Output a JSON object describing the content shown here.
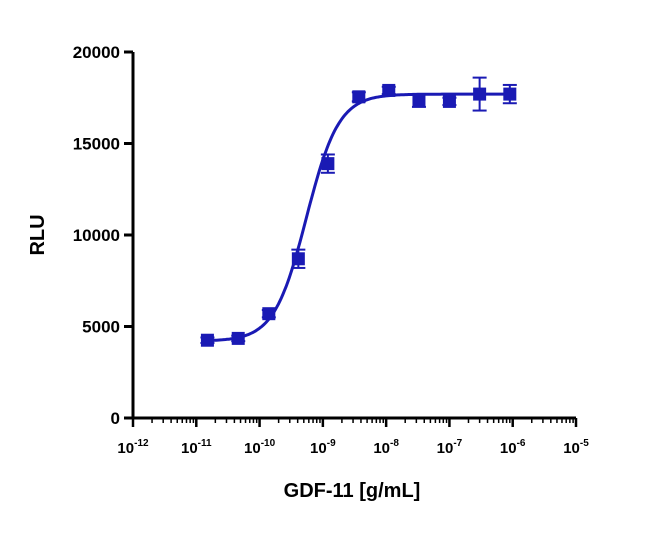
{
  "chart_data": {
    "type": "scatter",
    "title": "",
    "xlabel": "GDF-11 [g/mL]",
    "ylabel": "RLU",
    "xscale": "log",
    "xlim": [
      1e-12,
      1e-05
    ],
    "ylim": [
      0,
      20000
    ],
    "x_tick_labels": [
      {
        "base": "10",
        "exp": "-12"
      },
      {
        "base": "10",
        "exp": "-11"
      },
      {
        "base": "10",
        "exp": "-10"
      },
      {
        "base": "10",
        "exp": "-9"
      },
      {
        "base": "10",
        "exp": "-8"
      },
      {
        "base": "10",
        "exp": "-7"
      },
      {
        "base": "10",
        "exp": "-6"
      },
      {
        "base": "10",
        "exp": "-5"
      }
    ],
    "y_ticks": [
      0,
      5000,
      10000,
      15000,
      20000
    ],
    "y_tick_labels": [
      "0",
      "5000",
      "10000",
      "15000",
      "20000"
    ],
    "grid": false,
    "color": "#1a1ab4",
    "series": [
      {
        "name": "GDF-11",
        "marker": "square",
        "points": [
          {
            "x": 1.5e-11,
            "y": 4250,
            "err": 150
          },
          {
            "x": 4.6e-11,
            "y": 4350,
            "err": 150
          },
          {
            "x": 1.4e-10,
            "y": 5700,
            "err": 200
          },
          {
            "x": 4.1e-10,
            "y": 8700,
            "err": 500
          },
          {
            "x": 1.2e-09,
            "y": 13900,
            "err": 500
          },
          {
            "x": 3.7e-09,
            "y": 17550,
            "err": 250
          },
          {
            "x": 1.1e-08,
            "y": 17900,
            "err": 200
          },
          {
            "x": 3.3e-08,
            "y": 17350,
            "err": 350
          },
          {
            "x": 1e-07,
            "y": 17300,
            "err": 200
          },
          {
            "x": 3e-07,
            "y": 17700,
            "err": 900
          },
          {
            "x": 9e-07,
            "y": 17700,
            "err": 500
          }
        ],
        "fit": {
          "model": "4PL",
          "bottom": 4200,
          "top": 17700,
          "ec50": 5.5e-10,
          "hill": 1.7,
          "x_range": [
            1.5e-11,
            9e-07
          ]
        }
      }
    ]
  }
}
